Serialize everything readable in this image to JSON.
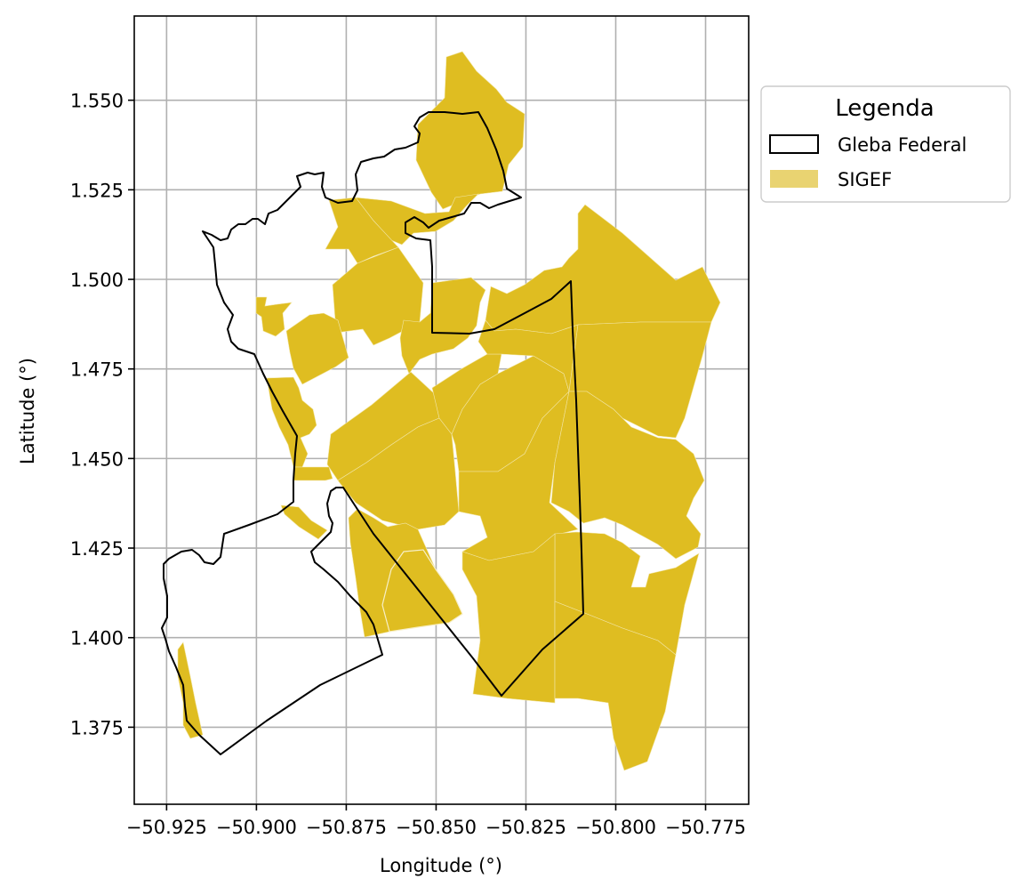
{
  "figure": {
    "xlabel": "Longitude (°)",
    "ylabel": "Latitude (°)"
  },
  "legend": {
    "title": "Legenda",
    "entries": [
      {
        "label": "Gleba Federal",
        "style": "outline",
        "color": "#000000"
      },
      {
        "label": "SIGEF",
        "style": "fill",
        "color": "#e9d371"
      }
    ]
  },
  "colors": {
    "sigef_fill": "#dfbd21",
    "gleba_stroke": "#000000",
    "grid": "#b0b0b0"
  },
  "axes": {
    "xlim": [
      -50.934,
      -50.763
    ],
    "ylim": [
      1.3535,
      1.5735
    ],
    "x_ticks": [
      {
        "value": -50.925,
        "label": "−50.925"
      },
      {
        "value": -50.9,
        "label": "−50.900"
      },
      {
        "value": -50.875,
        "label": "−50.875"
      },
      {
        "value": -50.85,
        "label": "−50.850"
      },
      {
        "value": -50.825,
        "label": "−50.825"
      },
      {
        "value": -50.8,
        "label": "−50.800"
      },
      {
        "value": -50.775,
        "label": "−50.775"
      }
    ],
    "y_ticks": [
      {
        "value": 1.55,
        "label": "1.550"
      },
      {
        "value": 1.525,
        "label": "1.525"
      },
      {
        "value": 1.5,
        "label": "1.500"
      },
      {
        "value": 1.475,
        "label": "1.475"
      },
      {
        "value": 1.45,
        "label": "1.450"
      },
      {
        "value": 1.425,
        "label": "1.425"
      },
      {
        "value": 1.4,
        "label": "1.400"
      },
      {
        "value": 1.375,
        "label": "1.375"
      }
    ],
    "grid": true
  }
}
